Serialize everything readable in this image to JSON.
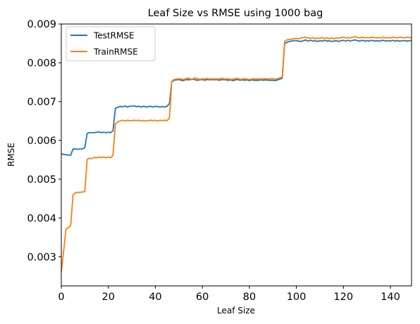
{
  "chart_data": {
    "type": "line",
    "title": "Leaf Size vs RMSE using 1000 bag",
    "xlabel": "Leaf Size",
    "ylabel": "RMSE",
    "xlim": [
      0,
      149
    ],
    "ylim": [
      0.00225,
      0.009
    ],
    "xticks": [
      0,
      20,
      40,
      60,
      80,
      100,
      120,
      140
    ],
    "xtick_labels": [
      "0",
      "20",
      "40",
      "60",
      "80",
      "100",
      "120",
      "140"
    ],
    "yticks": [
      0.003,
      0.004,
      0.005,
      0.006,
      0.007,
      0.008,
      0.009
    ],
    "ytick_labels": [
      "0.003",
      "0.004",
      "0.005",
      "0.006",
      "0.007",
      "0.008",
      "0.009"
    ],
    "grid": false,
    "legend_position": "top-left",
    "series": [
      {
        "name": "TestRMSE",
        "color": "#1f77b4",
        "points": [
          [
            0,
            0.00565
          ],
          [
            1,
            0.00564
          ],
          [
            2,
            0.00563
          ],
          [
            3,
            0.00562
          ],
          [
            4,
            0.00562
          ],
          [
            5,
            0.00578
          ],
          [
            6,
            0.00578
          ],
          [
            7,
            0.00577
          ],
          [
            8,
            0.00578
          ],
          [
            9,
            0.00578
          ],
          [
            10,
            0.00581
          ],
          [
            11,
            0.00618
          ],
          [
            12,
            0.0062
          ],
          [
            13,
            0.0062
          ],
          [
            14,
            0.0062
          ],
          [
            15,
            0.00621
          ],
          [
            16,
            0.00622
          ],
          [
            17,
            0.0062
          ],
          [
            18,
            0.00621
          ],
          [
            19,
            0.0062
          ],
          [
            20,
            0.00621
          ],
          [
            21,
            0.0062
          ],
          [
            22,
            0.00625
          ],
          [
            23,
            0.00683
          ],
          [
            24,
            0.00685
          ],
          [
            25,
            0.00688
          ],
          [
            26,
            0.00686
          ],
          [
            27,
            0.00689
          ],
          [
            28,
            0.00686
          ],
          [
            29,
            0.00688
          ],
          [
            30,
            0.00688
          ],
          [
            31,
            0.00689
          ],
          [
            32,
            0.00687
          ],
          [
            33,
            0.00688
          ],
          [
            34,
            0.00686
          ],
          [
            35,
            0.00688
          ],
          [
            36,
            0.00686
          ],
          [
            37,
            0.00687
          ],
          [
            38,
            0.00688
          ],
          [
            39,
            0.00686
          ],
          [
            40,
            0.00688
          ],
          [
            41,
            0.00687
          ],
          [
            42,
            0.00686
          ],
          [
            43,
            0.00687
          ],
          [
            44,
            0.00686
          ],
          [
            45,
            0.00688
          ],
          [
            46,
            0.00695
          ],
          [
            47,
            0.00751
          ],
          [
            48,
            0.00755
          ],
          [
            49,
            0.00756
          ],
          [
            50,
            0.00757
          ],
          [
            51,
            0.00755
          ],
          [
            52,
            0.00754
          ],
          [
            53,
            0.00757
          ],
          [
            54,
            0.00756
          ],
          [
            55,
            0.00757
          ],
          [
            56,
            0.00758
          ],
          [
            57,
            0.00756
          ],
          [
            58,
            0.00755
          ],
          [
            59,
            0.00756
          ],
          [
            60,
            0.00757
          ],
          [
            61,
            0.00755
          ],
          [
            62,
            0.00757
          ],
          [
            63,
            0.00756
          ],
          [
            64,
            0.00757
          ],
          [
            65,
            0.00756
          ],
          [
            66,
            0.00757
          ],
          [
            67,
            0.00755
          ],
          [
            68,
            0.00756
          ],
          [
            69,
            0.00757
          ],
          [
            70,
            0.00756
          ],
          [
            71,
            0.00755
          ],
          [
            72,
            0.00756
          ],
          [
            73,
            0.00754
          ],
          [
            74,
            0.00756
          ],
          [
            75,
            0.00757
          ],
          [
            76,
            0.00755
          ],
          [
            77,
            0.00756
          ],
          [
            78,
            0.00755
          ],
          [
            79,
            0.00756
          ],
          [
            80,
            0.00754
          ],
          [
            81,
            0.00756
          ],
          [
            82,
            0.00755
          ],
          [
            83,
            0.00755
          ],
          [
            84,
            0.00755
          ],
          [
            85,
            0.00756
          ],
          [
            86,
            0.00755
          ],
          [
            87,
            0.00756
          ],
          [
            88,
            0.00755
          ],
          [
            89,
            0.00755
          ],
          [
            90,
            0.00755
          ],
          [
            91,
            0.00754
          ],
          [
            92,
            0.00756
          ],
          [
            93,
            0.00758
          ],
          [
            94,
            0.0076
          ],
          [
            95,
            0.00849
          ],
          [
            96,
            0.00853
          ],
          [
            97,
            0.00855
          ],
          [
            98,
            0.00856
          ],
          [
            99,
            0.00857
          ],
          [
            100,
            0.00857
          ],
          [
            101,
            0.00856
          ],
          [
            102,
            0.00855
          ],
          [
            103,
            0.00857
          ],
          [
            104,
            0.00859
          ],
          [
            105,
            0.00856
          ],
          [
            106,
            0.00858
          ],
          [
            107,
            0.00856
          ],
          [
            108,
            0.00857
          ],
          [
            109,
            0.00855
          ],
          [
            110,
            0.00857
          ],
          [
            111,
            0.00856
          ],
          [
            112,
            0.00858
          ],
          [
            113,
            0.00856
          ],
          [
            114,
            0.00857
          ],
          [
            115,
            0.00855
          ],
          [
            116,
            0.00856
          ],
          [
            117,
            0.00857
          ],
          [
            118,
            0.00855
          ],
          [
            119,
            0.00857
          ],
          [
            120,
            0.00858
          ],
          [
            121,
            0.00856
          ],
          [
            122,
            0.00858
          ],
          [
            123,
            0.00856
          ],
          [
            124,
            0.00858
          ],
          [
            125,
            0.00859
          ],
          [
            126,
            0.00857
          ],
          [
            127,
            0.00856
          ],
          [
            128,
            0.00858
          ],
          [
            129,
            0.00856
          ],
          [
            130,
            0.00857
          ],
          [
            131,
            0.00856
          ],
          [
            132,
            0.00858
          ],
          [
            133,
            0.00856
          ],
          [
            134,
            0.00857
          ],
          [
            135,
            0.00856
          ],
          [
            136,
            0.00857
          ],
          [
            137,
            0.00858
          ],
          [
            138,
            0.00856
          ],
          [
            139,
            0.00857
          ],
          [
            140,
            0.00856
          ],
          [
            141,
            0.00858
          ],
          [
            142,
            0.00856
          ],
          [
            143,
            0.00857
          ],
          [
            144,
            0.00856
          ],
          [
            145,
            0.00857
          ],
          [
            146,
            0.00857
          ],
          [
            147,
            0.00856
          ],
          [
            148,
            0.00857
          ],
          [
            149,
            0.00857
          ]
        ]
      },
      {
        "name": "TrainRMSE",
        "color": "#ff7f0e",
        "points": [
          [
            0,
            0.00262
          ],
          [
            1,
            0.00315
          ],
          [
            2,
            0.00372
          ],
          [
            3,
            0.00375
          ],
          [
            4,
            0.00381
          ],
          [
            5,
            0.0046
          ],
          [
            6,
            0.00465
          ],
          [
            7,
            0.00466
          ],
          [
            8,
            0.00466
          ],
          [
            9,
            0.00467
          ],
          [
            10,
            0.00468
          ],
          [
            11,
            0.00551
          ],
          [
            12,
            0.00554
          ],
          [
            13,
            0.00553
          ],
          [
            14,
            0.00556
          ],
          [
            15,
            0.00555
          ],
          [
            16,
            0.00557
          ],
          [
            17,
            0.00556
          ],
          [
            18,
            0.00557
          ],
          [
            19,
            0.00555
          ],
          [
            20,
            0.00557
          ],
          [
            21,
            0.00555
          ],
          [
            22,
            0.00562
          ],
          [
            23,
            0.00642
          ],
          [
            24,
            0.00648
          ],
          [
            25,
            0.0065
          ],
          [
            26,
            0.00652
          ],
          [
            27,
            0.0065
          ],
          [
            28,
            0.00652
          ],
          [
            29,
            0.00651
          ],
          [
            30,
            0.00651
          ],
          [
            31,
            0.00652
          ],
          [
            32,
            0.00651
          ],
          [
            33,
            0.00652
          ],
          [
            34,
            0.0065
          ],
          [
            35,
            0.00651
          ],
          [
            36,
            0.0065
          ],
          [
            37,
            0.00651
          ],
          [
            38,
            0.00652
          ],
          [
            39,
            0.00651
          ],
          [
            40,
            0.00652
          ],
          [
            41,
            0.0065
          ],
          [
            42,
            0.00652
          ],
          [
            43,
            0.00651
          ],
          [
            44,
            0.00652
          ],
          [
            45,
            0.00651
          ],
          [
            46,
            0.00658
          ],
          [
            47,
            0.00752
          ],
          [
            48,
            0.00757
          ],
          [
            49,
            0.00758
          ],
          [
            50,
            0.00759
          ],
          [
            51,
            0.00758
          ],
          [
            52,
            0.00757
          ],
          [
            53,
            0.00759
          ],
          [
            54,
            0.00761
          ],
          [
            55,
            0.00758
          ],
          [
            56,
            0.00759
          ],
          [
            57,
            0.00761
          ],
          [
            58,
            0.00759
          ],
          [
            59,
            0.00757
          ],
          [
            60,
            0.00759
          ],
          [
            61,
            0.00758
          ],
          [
            62,
            0.0076
          ],
          [
            63,
            0.00758
          ],
          [
            64,
            0.00759
          ],
          [
            65,
            0.00758
          ],
          [
            66,
            0.00759
          ],
          [
            67,
            0.00758
          ],
          [
            68,
            0.0076
          ],
          [
            69,
            0.00759
          ],
          [
            70,
            0.00758
          ],
          [
            71,
            0.00759
          ],
          [
            72,
            0.00757
          ],
          [
            73,
            0.00758
          ],
          [
            74,
            0.00759
          ],
          [
            75,
            0.0076
          ],
          [
            76,
            0.00757
          ],
          [
            77,
            0.00758
          ],
          [
            78,
            0.00759
          ],
          [
            79,
            0.00758
          ],
          [
            80,
            0.00757
          ],
          [
            81,
            0.00758
          ],
          [
            82,
            0.00759
          ],
          [
            83,
            0.00758
          ],
          [
            84,
            0.00759
          ],
          [
            85,
            0.00758
          ],
          [
            86,
            0.00759
          ],
          [
            87,
            0.00759
          ],
          [
            88,
            0.00758
          ],
          [
            89,
            0.00759
          ],
          [
            90,
            0.00759
          ],
          [
            91,
            0.00758
          ],
          [
            92,
            0.00759
          ],
          [
            93,
            0.00761
          ],
          [
            94,
            0.00763
          ],
          [
            95,
            0.00855
          ],
          [
            96,
            0.00859
          ],
          [
            97,
            0.0086
          ],
          [
            98,
            0.00861
          ],
          [
            99,
            0.00862
          ],
          [
            100,
            0.00863
          ],
          [
            101,
            0.00862
          ],
          [
            102,
            0.00864
          ],
          [
            103,
            0.00865
          ],
          [
            104,
            0.00866
          ],
          [
            105,
            0.00864
          ],
          [
            106,
            0.00863
          ],
          [
            107,
            0.00865
          ],
          [
            108,
            0.00862
          ],
          [
            109,
            0.00864
          ],
          [
            110,
            0.00863
          ],
          [
            111,
            0.00865
          ],
          [
            112,
            0.00863
          ],
          [
            113,
            0.00864
          ],
          [
            114,
            0.00862
          ],
          [
            115,
            0.00864
          ],
          [
            116,
            0.00862
          ],
          [
            117,
            0.00864
          ],
          [
            118,
            0.00863
          ],
          [
            119,
            0.00865
          ],
          [
            120,
            0.00866
          ],
          [
            121,
            0.00864
          ],
          [
            122,
            0.00865
          ],
          [
            123,
            0.00864
          ],
          [
            124,
            0.00866
          ],
          [
            125,
            0.00867
          ],
          [
            126,
            0.00865
          ],
          [
            127,
            0.00864
          ],
          [
            128,
            0.00866
          ],
          [
            129,
            0.00864
          ],
          [
            130,
            0.00865
          ],
          [
            131,
            0.00864
          ],
          [
            132,
            0.00866
          ],
          [
            133,
            0.00865
          ],
          [
            134,
            0.00864
          ],
          [
            135,
            0.00865
          ],
          [
            136,
            0.00864
          ],
          [
            137,
            0.00866
          ],
          [
            138,
            0.00864
          ],
          [
            139,
            0.00865
          ],
          [
            140,
            0.00864
          ],
          [
            141,
            0.00866
          ],
          [
            142,
            0.00865
          ],
          [
            143,
            0.00864
          ],
          [
            144,
            0.00866
          ],
          [
            145,
            0.00865
          ],
          [
            146,
            0.00864
          ],
          [
            147,
            0.00866
          ],
          [
            148,
            0.00865
          ],
          [
            149,
            0.00865
          ]
        ]
      }
    ]
  }
}
